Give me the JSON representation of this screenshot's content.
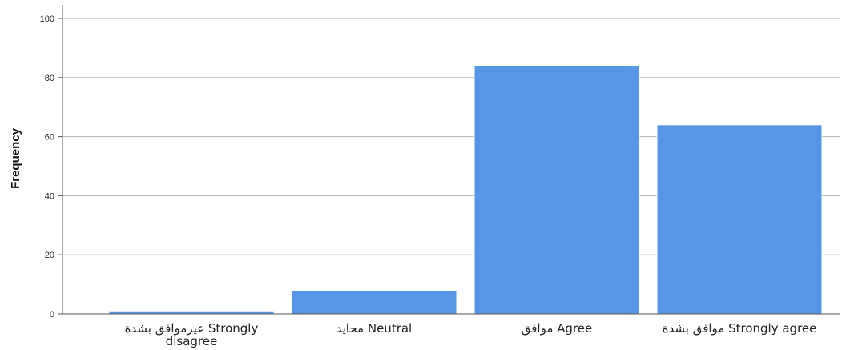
{
  "chart_data": {
    "type": "bar",
    "categories": [
      [
        "عيرموافق بشدة Strongly",
        "disagree"
      ],
      [
        "محايد Neutral"
      ],
      [
        "موافق Agree"
      ],
      [
        "موافق بشدة Strongly agree"
      ]
    ],
    "values": [
      1,
      8,
      84,
      64
    ],
    "title": "",
    "xlabel": "",
    "ylabel": "Frequency",
    "ylim": [
      0,
      100
    ],
    "yticks": [
      0,
      20,
      40,
      60,
      80,
      100
    ],
    "grid": true,
    "colors": {
      "bar": "#5796E6",
      "bar_edge": "#FFFFFF",
      "gridline": "#B0B0B0",
      "axis": "#555555"
    }
  }
}
